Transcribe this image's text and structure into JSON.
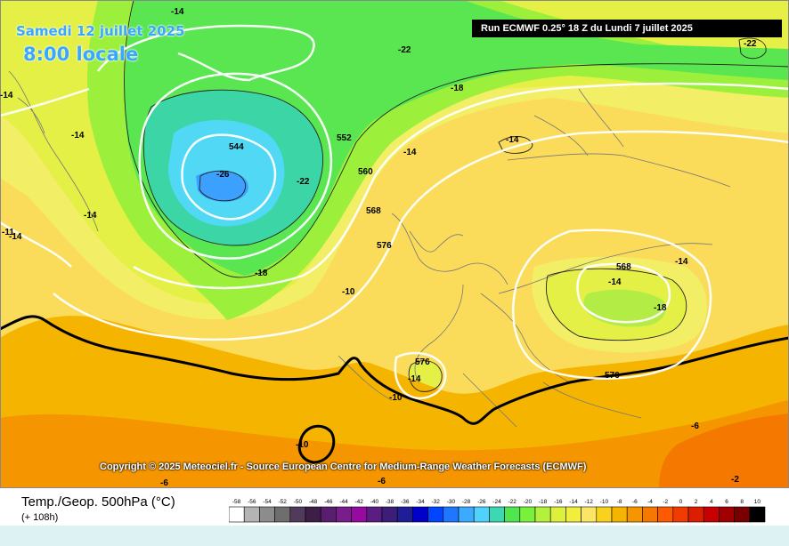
{
  "header": {
    "date_text": "Samedi 12 juillet 2025",
    "time_text": "8:00 locale",
    "run_text": "Run ECMWF 0.25° 18 Z du Lundi 7 juillet 2025"
  },
  "copyright": "Copyright © 2025 Meteociel.fr - Source European Centre for Medium-Range Weather Forecasts (ECMWF)",
  "legend": {
    "title": "Temp./Geop. 500hPa (°C)",
    "hours": "(+ 108h)",
    "ticks": [
      "-58",
      "-56",
      "-54",
      "-52",
      "-50",
      "-48",
      "-46",
      "-44",
      "-42",
      "-40",
      "-38",
      "-36",
      "-34",
      "-32",
      "-30",
      "-28",
      "-26",
      "-24",
      "-22",
      "-20",
      "-18",
      "-16",
      "-14",
      "-12",
      "-10",
      "-8",
      "-6",
      "-4",
      "-2",
      "0",
      "2",
      "4",
      "6",
      "8",
      "10"
    ],
    "colors": [
      "#ffffff",
      "#b4b4b4",
      "#8c8c8c",
      "#6e6e6e",
      "#503c5a",
      "#3c1e46",
      "#5a1e6e",
      "#781e8c",
      "#960aa0",
      "#5a1e82",
      "#3c1e78",
      "#1e1e96",
      "#0000c8",
      "#0046ff",
      "#1e78ff",
      "#3caaff",
      "#50d2ff",
      "#3cd8b4",
      "#50e650",
      "#78f03c",
      "#b4f03c",
      "#dcf03c",
      "#f0f03c",
      "#fae664",
      "#fad21e",
      "#f5b400",
      "#f59600",
      "#f57800",
      "#ff5a00",
      "#f03c00",
      "#dc1e00",
      "#c80000",
      "#a00000",
      "#780000",
      "#000000"
    ]
  },
  "map": {
    "geopotential_labels": [
      {
        "text": "544"
      },
      {
        "text": "552"
      },
      {
        "text": "560"
      },
      {
        "text": "568"
      },
      {
        "text": "576"
      },
      {
        "text": "568"
      },
      {
        "text": "576"
      },
      {
        "text": "576"
      }
    ],
    "temperature_labels": [
      {
        "text": "-14"
      },
      {
        "text": "-22"
      },
      {
        "text": "-18"
      },
      {
        "text": "-14"
      },
      {
        "text": "-26"
      },
      {
        "text": "-22"
      },
      {
        "text": "-14"
      },
      {
        "text": "-14"
      },
      {
        "text": "-14"
      },
      {
        "text": "-11"
      },
      {
        "text": "-14"
      },
      {
        "text": "-18"
      },
      {
        "text": "-10"
      },
      {
        "text": "-14"
      },
      {
        "text": "-14"
      },
      {
        "text": "-18"
      },
      {
        "text": "-14"
      },
      {
        "text": "-10"
      },
      {
        "text": "-10"
      },
      {
        "text": "-6"
      },
      {
        "text": "-6"
      },
      {
        "text": "-6"
      },
      {
        "text": "-2"
      },
      {
        "text": "-22"
      },
      {
        "text": "-14"
      }
    ]
  }
}
